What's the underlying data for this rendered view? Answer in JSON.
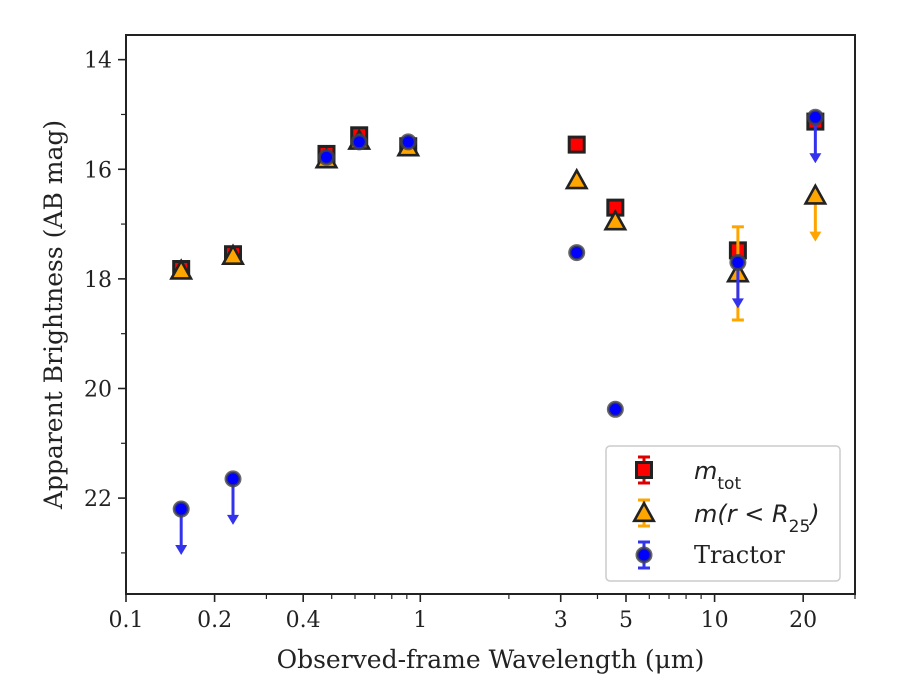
{
  "chart_data": {
    "type": "scatter",
    "xlabel": "Observed-frame Wavelength (μm)",
    "ylabel": "Apparent Brightness (AB mag)",
    "x_scale": "log",
    "xlim": [
      0.1,
      30
    ],
    "ylim": [
      23.75,
      13.55
    ],
    "x_ticks": [
      0.1,
      0.2,
      0.4,
      1,
      3,
      5,
      10,
      20
    ],
    "x_tick_labels": [
      "0.1",
      "0.2",
      "0.4",
      "1",
      "3",
      "5",
      "10",
      "20"
    ],
    "y_ticks": [
      14,
      16,
      18,
      20,
      22
    ],
    "y_tick_labels": [
      "14",
      "16",
      "18",
      "20",
      "22"
    ],
    "legend_position": "lower-right",
    "series": [
      {
        "name": "m_tot",
        "legend_main": "m",
        "legend_sub": "tot",
        "marker": "square",
        "face_color": "#ff0000",
        "error_color": "#dd0000",
        "points": [
          {
            "x": 0.154,
            "y": 17.82
          },
          {
            "x": 0.231,
            "y": 17.55
          },
          {
            "x": 0.48,
            "y": 15.72
          },
          {
            "x": 0.62,
            "y": 15.38
          },
          {
            "x": 0.91,
            "y": 15.58
          },
          {
            "x": 3.4,
            "y": 15.55
          },
          {
            "x": 4.6,
            "y": 16.7
          },
          {
            "x": 12.0,
            "y": 17.48
          },
          {
            "x": 22.0,
            "y": 15.13
          }
        ]
      },
      {
        "name": "m(r < R25)",
        "legend_main": "m(r < R",
        "legend_sub": "25",
        "legend_close": ")",
        "marker": "triangle",
        "face_color": "#ffa500",
        "error_color": "#ffa500",
        "points": [
          {
            "x": 0.154,
            "y": 17.85
          },
          {
            "x": 0.231,
            "y": 17.58
          },
          {
            "x": 0.48,
            "y": 15.82
          },
          {
            "x": 0.62,
            "y": 15.48
          },
          {
            "x": 0.91,
            "y": 15.6
          },
          {
            "x": 3.4,
            "y": 16.2
          },
          {
            "x": 4.6,
            "y": 16.95
          },
          {
            "x": 12.0,
            "y": 17.9,
            "err_lo": 0.85,
            "err_hi": 0.85
          },
          {
            "x": 22.0,
            "y": 16.48,
            "upper_limit": true
          }
        ]
      },
      {
        "name": "Tractor",
        "marker": "circle",
        "face_color": "#0000ff",
        "error_color": "#3333ee",
        "points": [
          {
            "x": 0.154,
            "y": 22.2,
            "upper_limit": true
          },
          {
            "x": 0.231,
            "y": 21.65,
            "upper_limit": true
          },
          {
            "x": 0.48,
            "y": 15.78
          },
          {
            "x": 0.62,
            "y": 15.5
          },
          {
            "x": 0.91,
            "y": 15.5
          },
          {
            "x": 3.4,
            "y": 17.52
          },
          {
            "x": 4.6,
            "y": 20.38
          },
          {
            "x": 12.0,
            "y": 17.7,
            "upper_limit": true
          },
          {
            "x": 22.0,
            "y": 15.05,
            "upper_limit": true
          }
        ]
      }
    ]
  }
}
